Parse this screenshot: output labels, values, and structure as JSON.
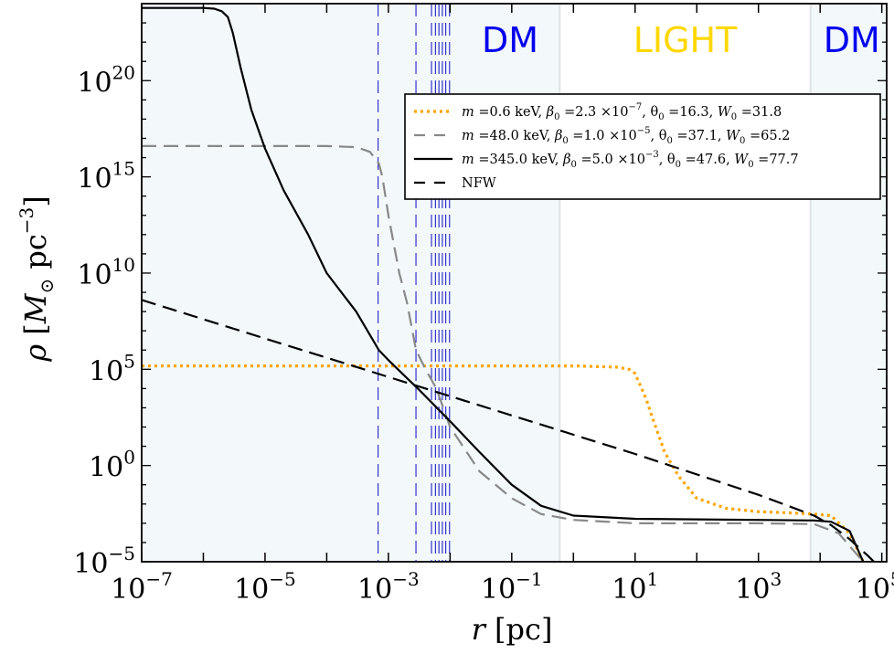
{
  "chart_data": {
    "type": "line",
    "title": "",
    "xlabel": "r [pc]",
    "ylabel": "ρ [M⊙ pc⁻³]",
    "xscale": "log",
    "yscale": "log",
    "xlim": [
      1e-07,
      120000.0
    ],
    "ylim": [
      1e-05,
      1e+24
    ],
    "grid": false,
    "legend_position": "upper-right",
    "x_ticks": [
      {
        "value": 1e-07,
        "base": "10",
        "exp": "−7"
      },
      {
        "value": 1e-05,
        "base": "10",
        "exp": "−5"
      },
      {
        "value": 0.001,
        "base": "10",
        "exp": "−3"
      },
      {
        "value": 0.1,
        "base": "10",
        "exp": "−1"
      },
      {
        "value": 10.0,
        "base": "10",
        "exp": "1"
      },
      {
        "value": 1000.0,
        "base": "10",
        "exp": "3"
      },
      {
        "value": 100000.0,
        "base": "10",
        "exp": "5"
      }
    ],
    "y_ticks": [
      {
        "value": 1e-05,
        "base": "10",
        "exp": "−5"
      },
      {
        "value": 1.0,
        "base": "10",
        "exp": "0"
      },
      {
        "value": 100000.0,
        "base": "10",
        "exp": "5"
      },
      {
        "value": 10000000000.0,
        "base": "10",
        "exp": "10"
      },
      {
        "value": 1000000000000000.0,
        "base": "10",
        "exp": "15"
      },
      {
        "value": 1e+20,
        "base": "10",
        "exp": "20"
      }
    ],
    "regions": [
      {
        "label": "DM",
        "x_range": [
          1e-07,
          0.6
        ],
        "color": "#0000ee",
        "shaded": true
      },
      {
        "label": "LIGHT",
        "x_range": [
          0.6,
          7000
        ],
        "color": "#ffd700",
        "shaded": false
      },
      {
        "label": "DM",
        "x_range": [
          7000,
          120000.0
        ],
        "color": "#0000ee",
        "shaded": true
      }
    ],
    "region_shade_color": "#f3f8fa",
    "region_boundary_color": "#dde3e6",
    "vertical_markers": {
      "color": "#3333cc",
      "x": [
        0.00068,
        0.0028,
        0.005,
        0.0058,
        0.0066,
        0.0075,
        0.0085,
        0.0098
      ]
    },
    "series": [
      {
        "name": "m =0.6 keV, β₀ =2.3 ×10⁻⁷, θ₀ =16.3, W₀ =31.8",
        "color": "#ffa500",
        "style": "dotted",
        "x": [
          1e-07,
          0.0001,
          0.01,
          1,
          5,
          8,
          10,
          15,
          20,
          30,
          50,
          100,
          300,
          1000,
          3000,
          8000,
          15000,
          30000,
          50000
        ],
        "y": [
          150000.0,
          150000.0,
          150000.0,
          150000.0,
          130000.0,
          100000.0,
          60000.0,
          3000.0,
          200.0,
          5,
          0.3,
          0.02,
          0.006,
          0.004,
          0.0035,
          0.003,
          0.0025,
          0.0003,
          1e-05
        ]
      },
      {
        "name": "m =48.0 keV, β₀ =1.0 ×10⁻⁵, θ₀ =37.1, W₀ =65.2",
        "color": "#888888",
        "style": "dashed",
        "x": [
          1e-07,
          1e-05,
          0.0001,
          0.0003,
          0.0005,
          0.0007,
          0.0008,
          0.001,
          0.0015,
          0.002,
          0.0028,
          0.004,
          0.006,
          0.01,
          0.03,
          0.1,
          0.3,
          1,
          10,
          100,
          1000,
          8000,
          20000,
          50000
        ],
        "y": [
          4e+16,
          4e+16,
          4e+16,
          3.5e+16,
          2e+16,
          5000000000000000.0,
          1000000000000000.0,
          10000000000000.0,
          10000000000.0,
          300000000.0,
          1000000.0,
          100000.0,
          10000.0,
          100.0,
          0.5,
          0.02,
          0.003,
          0.0015,
          0.001,
          0.001,
          0.001,
          0.0009,
          0.0003,
          1e-05
        ]
      },
      {
        "name": "m =345.0 keV, β₀ =5.0 ×10⁻³, θ₀ =47.6, W₀ =77.7",
        "color": "#000000",
        "style": "solid",
        "x": [
          1e-07,
          1e-06,
          1.5e-06,
          2e-06,
          2.5e-06,
          3e-06,
          4e-06,
          6e-06,
          1e-05,
          2e-05,
          5e-05,
          0.0001,
          0.0003,
          0.0007,
          0.001,
          0.003,
          0.01,
          0.03,
          0.1,
          0.3,
          1,
          10,
          100,
          1000,
          8000,
          15000,
          30000,
          50000
        ],
        "y": [
          6e+23,
          6e+23,
          5.5e+23,
          4e+23,
          2e+23,
          3e+22,
          5e+20,
          3e+18,
          3e+16,
          200000000000000.0,
          1000000000000.0,
          10000000000.0,
          100000000.0,
          1000000.0,
          300000.0,
          10000.0,
          200.0,
          5,
          0.1,
          0.008,
          0.0025,
          0.0017,
          0.0016,
          0.0015,
          0.0014,
          0.0012,
          0.0004,
          1e-05
        ]
      },
      {
        "name": "NFW",
        "color": "#000000",
        "style": "dashed",
        "x": [
          1e-07,
          1e-05,
          0.001,
          0.1,
          10,
          1000,
          8000,
          15000,
          30000,
          60000,
          80000
        ],
        "y": [
          400000000.0,
          4000000.0,
          40000.0,
          400.0,
          4,
          0.03,
          0.0025,
          0.0008,
          0.00015,
          2e-05,
          8e-06
        ]
      }
    ]
  },
  "legend_items": [
    {
      "m": "m",
      "m_val": " =0.6 keV, ",
      "beta": "β",
      "beta_sub": "0",
      "beta_val": " =2.3 ×10",
      "beta_exp": "−7",
      "theta": ", θ",
      "theta_sub": "0",
      "theta_val": " =16.3, ",
      "w": "W",
      "w_sub": "0",
      "w_val": " =31.8"
    },
    {
      "m": "m",
      "m_val": " =48.0 keV, ",
      "beta": "β",
      "beta_sub": "0",
      "beta_val": " =1.0 ×10",
      "beta_exp": "−5",
      "theta": ", θ",
      "theta_sub": "0",
      "theta_val": " =37.1, ",
      "w": "W",
      "w_sub": "0",
      "w_val": " =65.2"
    },
    {
      "m": "m",
      "m_val": " =345.0 keV, ",
      "beta": "β",
      "beta_sub": "0",
      "beta_val": " =5.0 ×10",
      "beta_exp": "−3",
      "theta": ", θ",
      "theta_sub": "0",
      "theta_val": " =47.6, ",
      "w": "W",
      "w_sub": "0",
      "w_val": " =77.7"
    },
    {
      "m": "NFW"
    }
  ],
  "axis_labels": {
    "x_var": "r",
    "x_unit": " [pc]",
    "y_var": "ρ",
    "y_open": " [",
    "y_m": "M",
    "y_sun": "⊙",
    "y_unit": " pc",
    "y_exp": "−3",
    "y_close": "]"
  }
}
